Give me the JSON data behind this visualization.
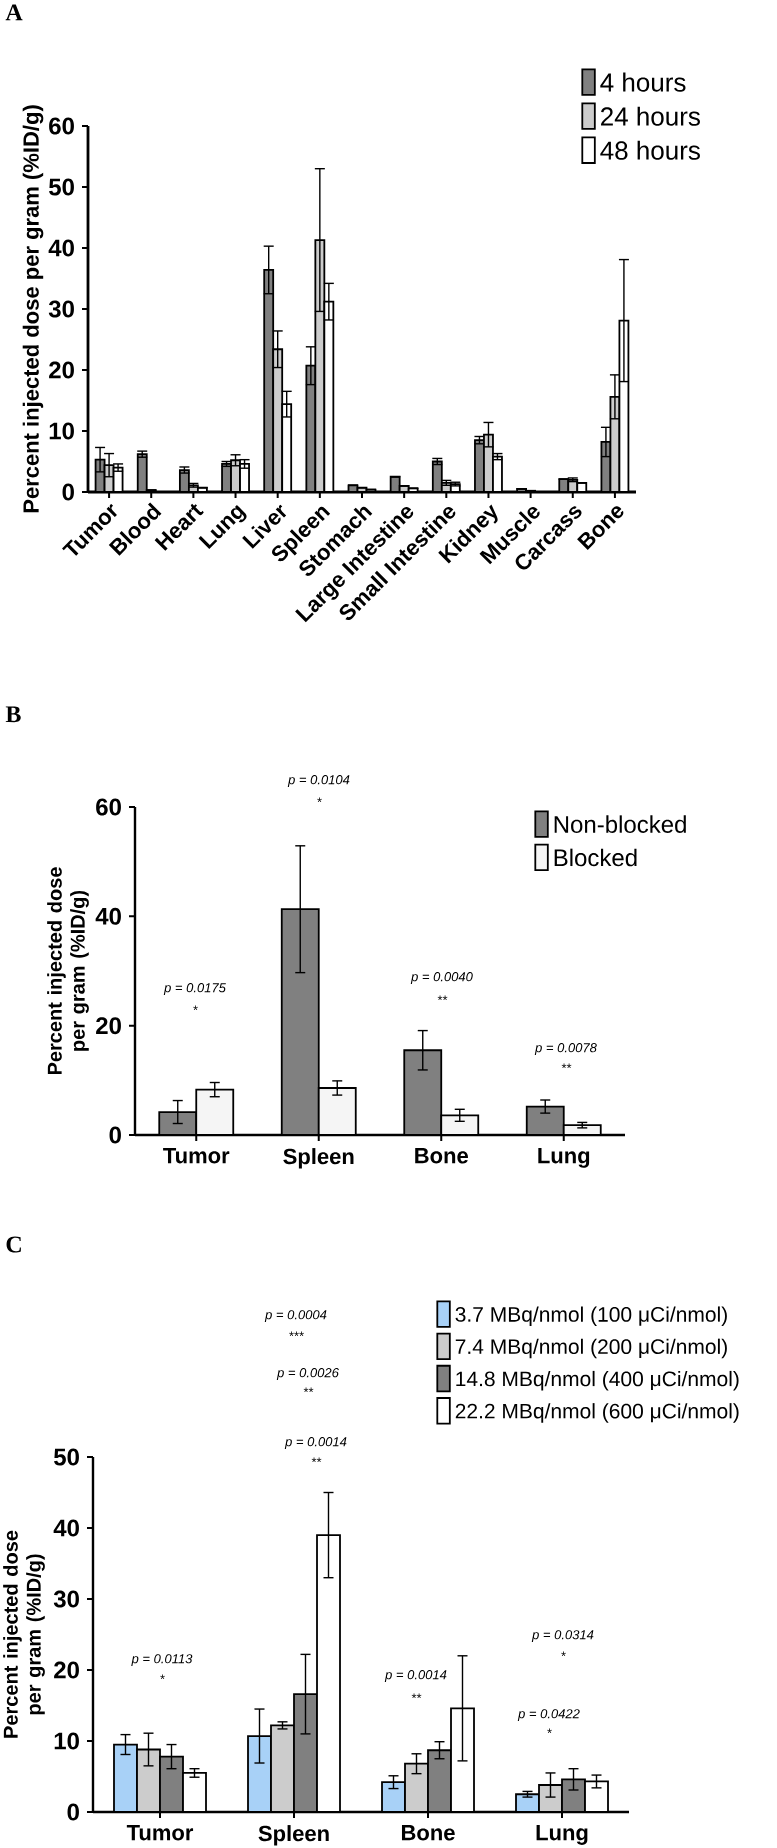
{
  "chart_data": [
    {
      "type": "bar",
      "title": "A",
      "ylabel": "Percent injected dose per gram (%ID/g)",
      "categories": [
        "Tumor",
        "Blood",
        "Heart",
        "Lung",
        "Liver",
        "Spleen",
        "Stomach",
        "Large Intestine",
        "Small Intestine",
        "Kidney",
        "Muscle",
        "Carcass",
        "Bone"
      ],
      "series": [
        {
          "name": "4 hours",
          "color": "#808080",
          "values": [
            5.3,
            6.2,
            3.6,
            4.6,
            36.4,
            20.7,
            1.1,
            2.5,
            5.0,
            8.5,
            0.5,
            2.1,
            8.2
          ],
          "errors": [
            2.0,
            0.5,
            0.5,
            0.4,
            3.9,
            3.1,
            null,
            null,
            0.5,
            0.6,
            null,
            null,
            2.4
          ]
        },
        {
          "name": "24 hours",
          "color": "#cccccc",
          "values": [
            4.4,
            0.3,
            1.1,
            5.2,
            23.4,
            41.3,
            0.7,
            1.0,
            1.5,
            9.4,
            0.2,
            2.0,
            15.6
          ],
          "errors": [
            1.9,
            null,
            0.3,
            0.9,
            3.0,
            11.7,
            null,
            null,
            0.4,
            2.0,
            null,
            0.3,
            3.6
          ]
        },
        {
          "name": "48 hours",
          "color": "#ffffff",
          "values": [
            4.0,
            null,
            0.7,
            4.6,
            14.4,
            31.2,
            0.4,
            0.6,
            1.3,
            5.8,
            null,
            1.5,
            28.1
          ],
          "errors": [
            0.6,
            null,
            null,
            0.7,
            2.1,
            3.0,
            null,
            null,
            0.3,
            0.5,
            null,
            null,
            10.0
          ]
        }
      ],
      "ylim": [
        0,
        60
      ],
      "yticks": [
        0,
        10,
        20,
        30,
        40,
        50,
        60
      ],
      "legend": "top right"
    },
    {
      "type": "bar",
      "title": "B",
      "ylabel": "Percent injected dose per gram (%ID/g)",
      "categories": [
        "Tumor",
        "Spleen",
        "Bone",
        "Lung"
      ],
      "series": [
        {
          "name": "Non-blocked",
          "color": "#808080",
          "values": [
            4.2,
            41.3,
            15.5,
            5.2
          ],
          "errors": [
            2.1,
            11.6,
            3.6,
            1.2
          ]
        },
        {
          "name": "Blocked",
          "color": "#f5f5f5",
          "values": [
            8.3,
            8.6,
            3.6,
            1.8
          ],
          "errors": [
            1.3,
            1.3,
            1.1,
            0.5
          ]
        }
      ],
      "ylim": [
        0,
        60
      ],
      "yticks": [
        0,
        20,
        40,
        60
      ],
      "legend": "top right",
      "annotations": [
        "p = 0.0175",
        "*",
        "p = 0.0104",
        "*",
        "p = 0.0040",
        "**",
        "p = 0.0078",
        "**"
      ]
    },
    {
      "type": "bar",
      "title": "C",
      "ylabel": "Percent injected dose per gram (%ID/g)",
      "categories": [
        "Tumor",
        "Spleen",
        "Bone",
        "Lung"
      ],
      "series": [
        {
          "name": "3.7 MBq/nmol (100 μCi/nmol)",
          "color": "#a8d1f7",
          "values": [
            9.5,
            10.7,
            4.2,
            2.5
          ],
          "errors": [
            1.4,
            3.8,
            0.9,
            0.4
          ]
        },
        {
          "name": "7.4 MBq/nmol (200 μCi/nmol)",
          "color": "#cccccc",
          "values": [
            8.8,
            12.2,
            6.8,
            3.8
          ],
          "errors": [
            2.3,
            0.5,
            1.4,
            1.7
          ]
        },
        {
          "name": "14.8 MBq/nmol (400 μCi/nmol)",
          "color": "#808080",
          "values": [
            7.8,
            16.6,
            8.7,
            4.6
          ],
          "errors": [
            1.7,
            5.6,
            1.2,
            1.5
          ]
        },
        {
          "name": "22.2 MBq/nmol (600 μCi/nmol)",
          "color": "#ffffff",
          "values": [
            5.5,
            39.0,
            14.6,
            4.3
          ],
          "errors": [
            0.6,
            6.0,
            7.4,
            0.9
          ]
        }
      ],
      "ylim": [
        0,
        50
      ],
      "yticks": [
        0,
        10,
        20,
        30,
        40,
        50
      ],
      "legend": "top right",
      "annotations": [
        "p = 0.0113",
        "*",
        "p = 0.0004",
        "***",
        "p = 0.0026",
        "**",
        "p = 0.0014",
        "**",
        "p = 0.0014",
        "**",
        "p = 0.0314",
        "*",
        "p = 0.0422",
        "*"
      ]
    }
  ]
}
